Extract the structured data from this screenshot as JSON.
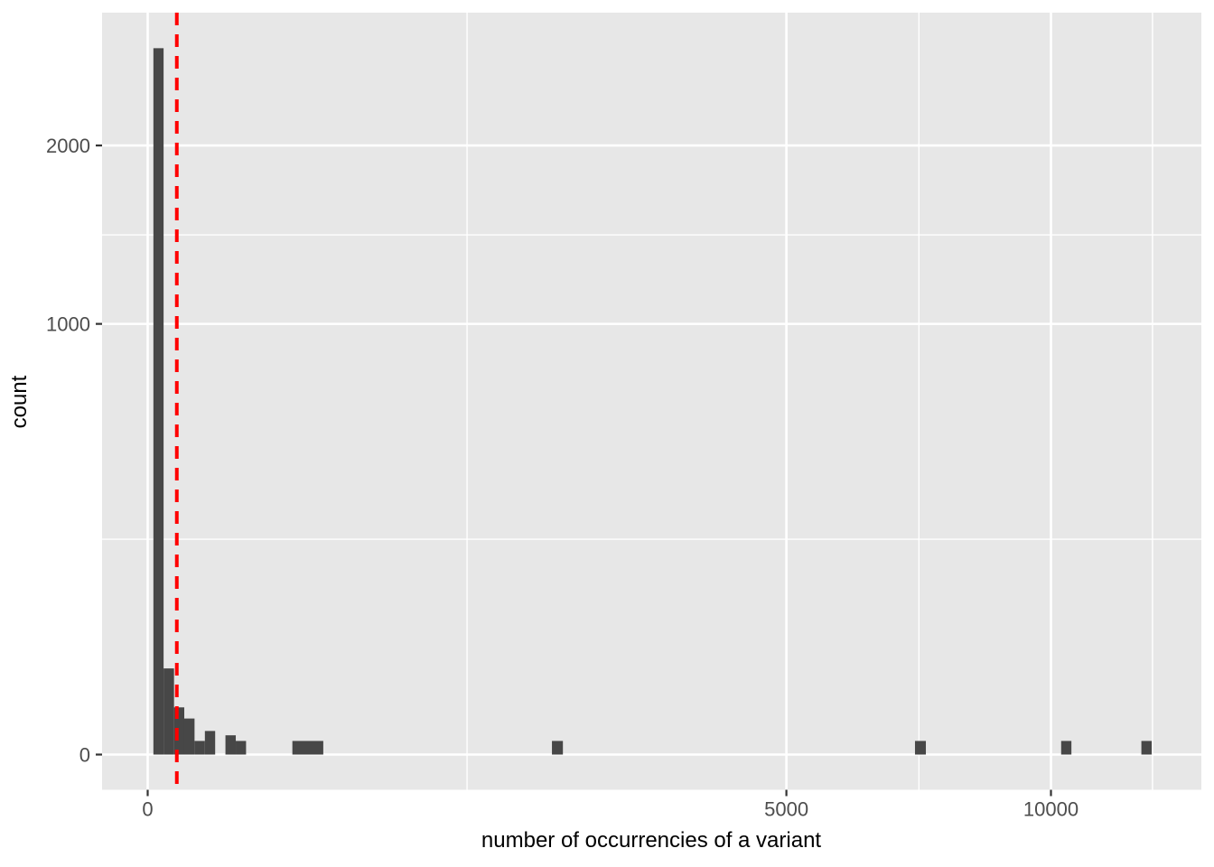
{
  "chart_data": {
    "type": "bar",
    "subtype": "histogram",
    "title": "",
    "xlabel": "number of occurrencies of a variant",
    "ylabel": "count",
    "x_scale": "sqrt",
    "y_scale": "sqrt",
    "x_ticks": [
      0,
      5000,
      10000
    ],
    "y_ticks": [
      0,
      1000,
      2000
    ],
    "x_minor_breaks": [
      1250,
      7290,
      12375
    ],
    "y_minor_breaks": [
      250,
      1456
    ],
    "x_axis_display_max": 13600,
    "y_axis_display_max": 2970,
    "grid": true,
    "legend": "none",
    "bins": [
      {
        "x0": 0.4,
        "x1": 3.1,
        "count": 2690
      },
      {
        "x0": 3.1,
        "x1": 8.5,
        "count": 40
      },
      {
        "x0": 8.5,
        "x1": 16.4,
        "count": 12
      },
      {
        "x0": 16.4,
        "x1": 26.9,
        "count": 7
      },
      {
        "x0": 26.9,
        "x1": 40.1,
        "count": 1
      },
      {
        "x0": 40.1,
        "x1": 55.8,
        "count": 3
      },
      {
        "x0": 55.8,
        "x1": 74.1,
        "count": 0
      },
      {
        "x0": 74.1,
        "x1": 95.1,
        "count": 2
      },
      {
        "x0": 95.1,
        "x1": 118.6,
        "count": 1
      },
      {
        "x0": 256.6,
        "x1": 377.9,
        "count": 1
      },
      {
        "x0": 2003,
        "x1": 2113,
        "count": 1
      },
      {
        "x0": 7216,
        "x1": 7422,
        "count": 1
      },
      {
        "x0": 10227,
        "x1": 10458,
        "count": 1
      },
      {
        "x0": 12102,
        "x1": 12355,
        "count": 1
      }
    ],
    "vline": {
      "x": 10.4,
      "style": "dashed",
      "color": "#FF0000"
    },
    "colors": {
      "bar": "#474747",
      "panel": "#E7E7E7",
      "grid": "#FFFFFF",
      "tick_mark": "#333333",
      "tick_text": "#4D4D4D",
      "axis_title": "#000000"
    }
  }
}
